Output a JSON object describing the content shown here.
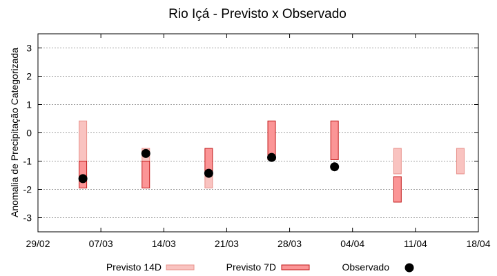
{
  "chart_data": {
    "type": "range-bar-scatter",
    "title": "Rio Içá - Previsto x Observado",
    "xlabel": "",
    "ylabel": "Anomalia de Precipitação Categorizada",
    "ylim": [
      -3.5,
      3.5
    ],
    "yticks": [
      -3,
      -2,
      -1,
      0,
      1,
      2,
      3
    ],
    "grid": true,
    "legend_position": "bottom",
    "x_date_range": [
      "29/02",
      "18/04"
    ],
    "xticks": [
      {
        "label": "29/02",
        "day": 0
      },
      {
        "label": "07/03",
        "day": 7
      },
      {
        "label": "14/03",
        "day": 14
      },
      {
        "label": "21/03",
        "day": 21
      },
      {
        "label": "28/03",
        "day": 28
      },
      {
        "label": "04/04",
        "day": 35
      },
      {
        "label": "11/04",
        "day": 42
      },
      {
        "label": "18/04",
        "day": 49
      }
    ],
    "series": [
      {
        "name": "Previsto 14D",
        "fill": "#f9c3c0",
        "stroke": "#e8908a",
        "points": [
          {
            "day": 5,
            "low": -1.0,
            "high": 0.42
          },
          {
            "day": 12,
            "low": -1.0,
            "high": -0.55
          },
          {
            "day": 19,
            "low": -1.95,
            "high": -1.45
          },
          {
            "day": 40,
            "low": -1.45,
            "high": -0.55
          },
          {
            "day": 47,
            "low": -1.45,
            "high": -0.55
          }
        ]
      },
      {
        "name": "Previsto 7D",
        "fill": "#fb9596",
        "stroke": "#c11a1a",
        "points": [
          {
            "day": 5,
            "low": -1.95,
            "high": -1.0
          },
          {
            "day": 12,
            "low": -1.95,
            "high": -1.0
          },
          {
            "day": 19,
            "low": -1.45,
            "high": -0.55
          },
          {
            "day": 26,
            "low": -0.95,
            "high": 0.42
          },
          {
            "day": 33,
            "low": -0.95,
            "high": 0.42
          },
          {
            "day": 40,
            "low": -2.45,
            "high": -1.55
          }
        ]
      },
      {
        "name": "Observado",
        "color": "#000000",
        "points": [
          {
            "day": 5,
            "value": -1.62
          },
          {
            "day": 12,
            "value": -0.73
          },
          {
            "day": 19,
            "value": -1.43
          },
          {
            "day": 26,
            "value": -0.87
          },
          {
            "day": 33,
            "value": -1.2
          }
        ]
      }
    ]
  }
}
